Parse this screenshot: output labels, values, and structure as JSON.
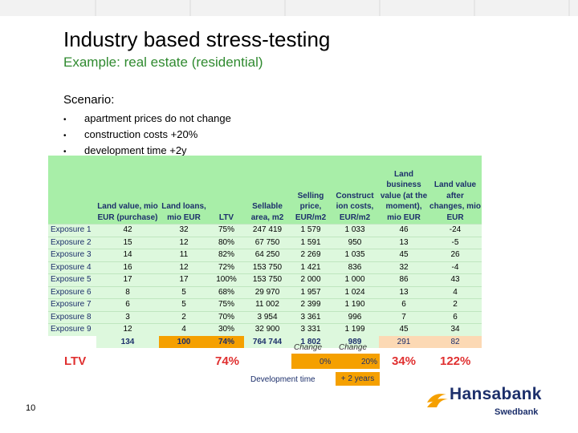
{
  "slide": {
    "title": "Industry based stress-testing",
    "subtitle": "Example: real estate (residential)",
    "scenario_label": "Scenario:",
    "bullets": [
      {
        "symbol": "•",
        "text": "apartment prices do not change"
      },
      {
        "symbol": "•",
        "text": "construction costs +20%"
      },
      {
        "symbol": "•",
        "text": "development time +2y"
      }
    ],
    "page_number": "10"
  },
  "table": {
    "headers": [
      "",
      "Land value, mio EUR (purchase)",
      "Land loans, mio EUR",
      "LTV",
      "Sellable area, m2",
      "Selling price, EUR/m2",
      "Construct ion costs, EUR/m2",
      "Land business value (at the moment), mio EUR",
      "Land value after changes, mio EUR"
    ],
    "rows": [
      [
        "Exposure 1",
        "42",
        "32",
        "75%",
        "247 419",
        "1 579",
        "1 033",
        "46",
        "-24"
      ],
      [
        "Exposure 2",
        "15",
        "12",
        "80%",
        "67 750",
        "1 591",
        "950",
        "13",
        "-5"
      ],
      [
        "Exposure 3",
        "14",
        "11",
        "82%",
        "64 250",
        "2 269",
        "1 035",
        "45",
        "26"
      ],
      [
        "Exposure 4",
        "16",
        "12",
        "72%",
        "153 750",
        "1 421",
        "836",
        "32",
        "-4"
      ],
      [
        "Exposure 5",
        "17",
        "17",
        "100%",
        "153 750",
        "2 000",
        "1 000",
        "86",
        "43"
      ],
      [
        "Exposure 6",
        "8",
        "5",
        "68%",
        "29 970",
        "1 957",
        "1 024",
        "13",
        "4"
      ],
      [
        "Exposure 7",
        "6",
        "5",
        "75%",
        "11 002",
        "2 399",
        "1 190",
        "6",
        "2"
      ],
      [
        "Exposure 8",
        "3",
        "2",
        "70%",
        "3 954",
        "3 361",
        "996",
        "7",
        "6"
      ],
      [
        "Exposure 9",
        "12",
        "4",
        "30%",
        "32 900",
        "3 331",
        "1 199",
        "45",
        "34"
      ]
    ],
    "totals": [
      "",
      "134",
      "100",
      "74%",
      "764 744",
      "1 802",
      "989",
      "291",
      "82"
    ]
  },
  "scenario": {
    "change_label_1": "Change",
    "change_label_2": "Change",
    "price_change": "0%",
    "cost_change": "20%",
    "ltv_label": "LTV",
    "ltv_value": "74%",
    "result_ltv_1": "34%",
    "result_ltv_2": "122%",
    "dev_time_label": "Development time",
    "dev_time_change": "+ 2 years"
  },
  "logo": {
    "brand": "Hansabank",
    "parent": "Swedbank"
  },
  "colors": {
    "header_green": "#a8eea8",
    "row_green": "#ddf8dd",
    "accent_orange": "#f5a000",
    "result_red": "#e03030",
    "navy": "#1c2f6b"
  }
}
